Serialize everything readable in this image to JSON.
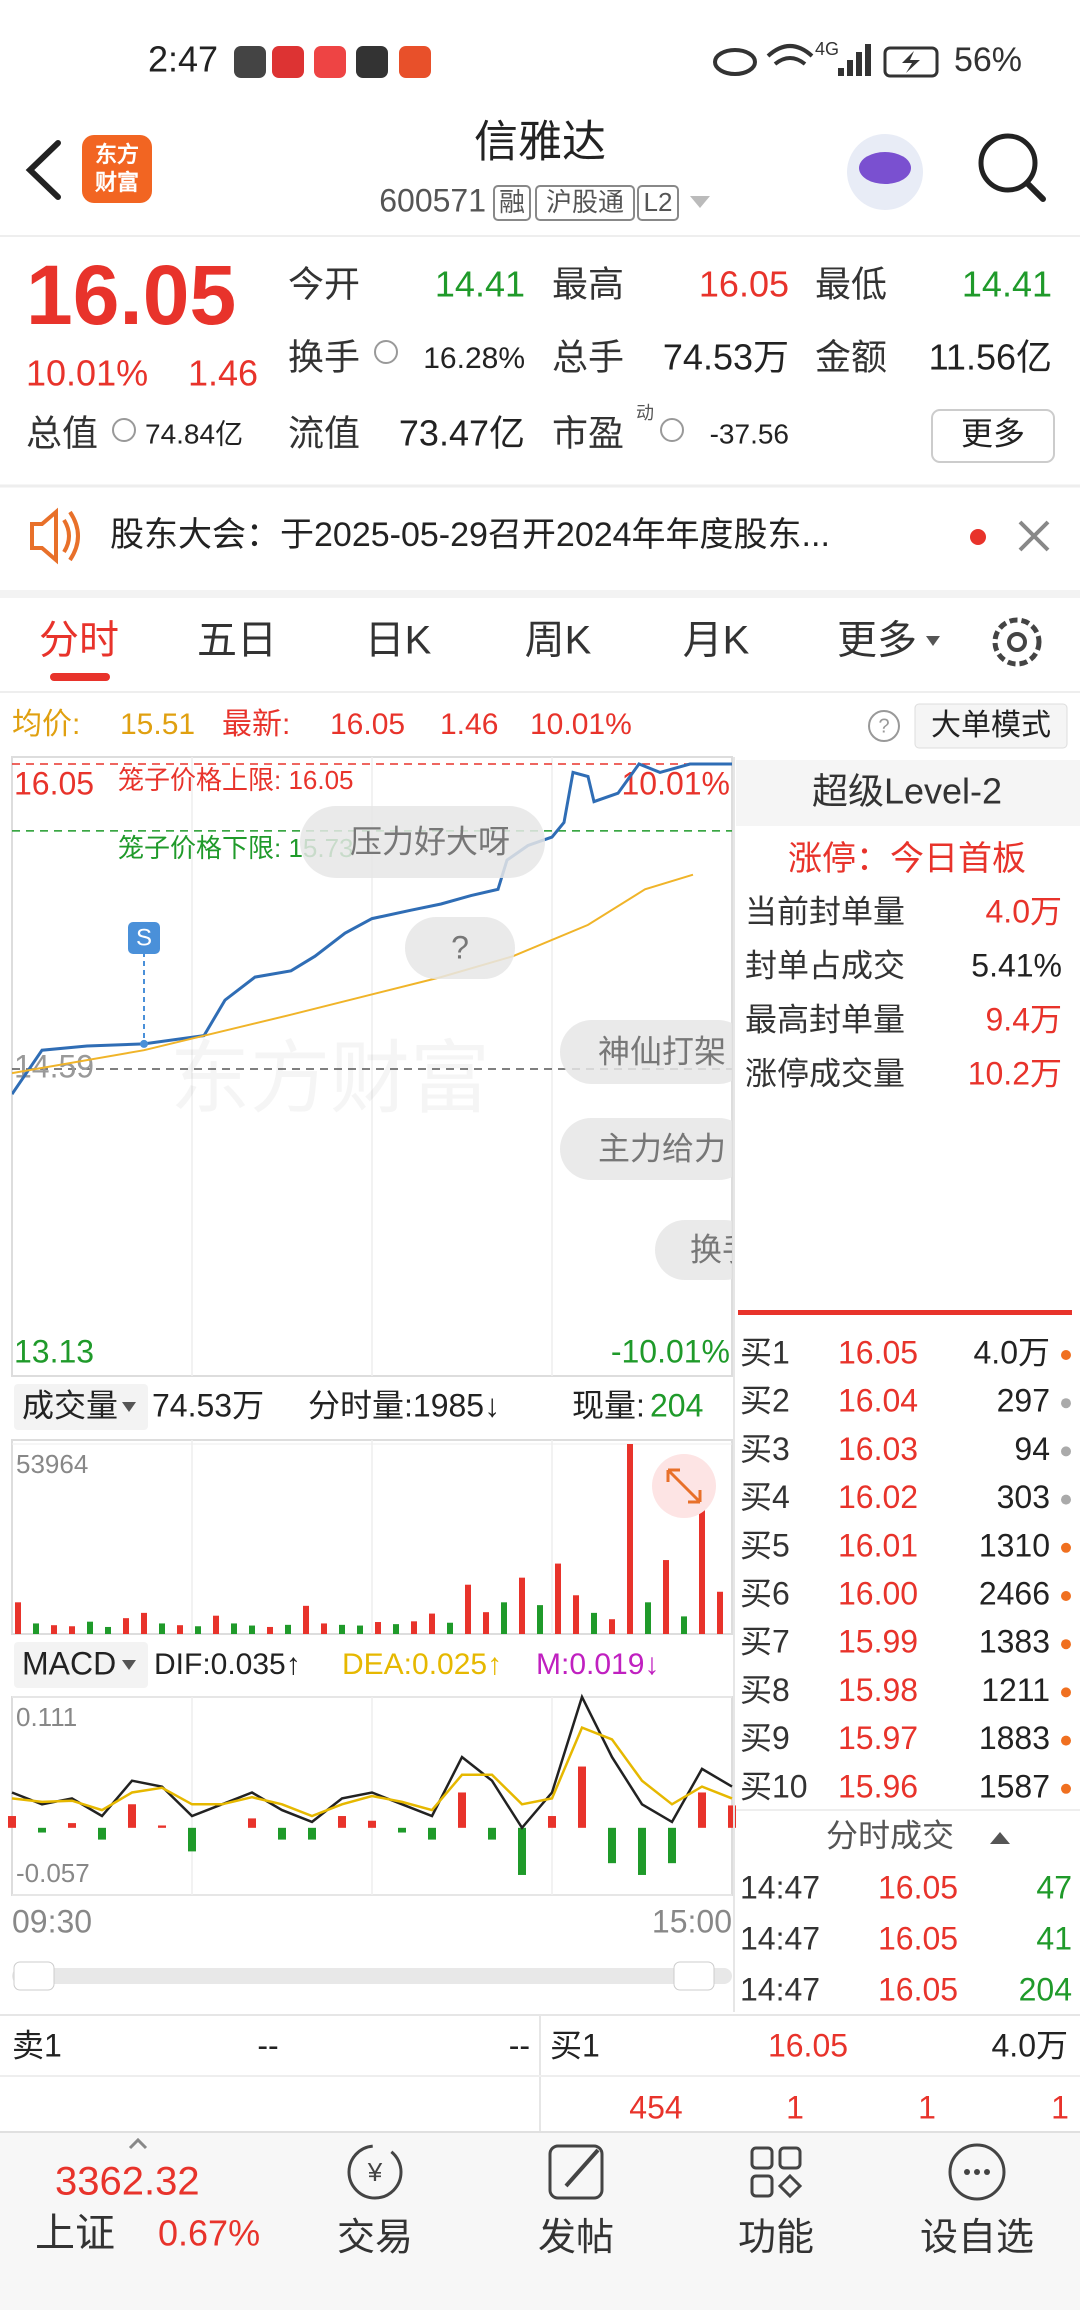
{
  "status": {
    "time": "2:47",
    "network": "4G",
    "battery": "56%"
  },
  "header": {
    "logo": [
      "东方",
      "财富"
    ],
    "title": "信雅达",
    "code": "600571",
    "tags": [
      "融",
      "沪股通",
      "L2"
    ]
  },
  "quote": {
    "price": "16.05",
    "percent": "10.01%",
    "change": "1.46",
    "fields": [
      {
        "label": "今开",
        "value": "14.41",
        "color": "#1f9a2a"
      },
      {
        "label": "最高",
        "value": "16.05",
        "color": "#e8332b"
      },
      {
        "label": "最低",
        "value": "14.41",
        "color": "#1f9a2a"
      },
      {
        "label": "换手",
        "value": "16.28%"
      },
      {
        "label": "总手",
        "value": "74.53万"
      },
      {
        "label": "金额",
        "value": "11.56亿"
      },
      {
        "label": "总值",
        "value": "74.84亿"
      },
      {
        "label": "流值",
        "value": "73.47亿"
      },
      {
        "label": "市盈",
        "value": "-37.56",
        "superscript": "动"
      }
    ],
    "more": "更多"
  },
  "notice": "股东大会：于2025-05-29召开2024年年度股东...",
  "tabs": [
    "分时",
    "五日",
    "日K",
    "周K",
    "月K",
    "更多"
  ],
  "info": {
    "avg_label": "均价:",
    "avg": "15.51",
    "latest_label": "最新:",
    "latest": "16.05",
    "change": "1.46",
    "percent": "10.01%",
    "mode": "大单模式"
  },
  "overlay": {
    "upper_limit": "笼子价格上限: 16.05",
    "lower_limit": "笼子价格下限: 15.73",
    "bubbles": [
      "压力好大呀",
      "?",
      "神仙打架",
      "主力给力",
      "换手"
    ],
    "badge": "S",
    "watermark": "东方财富"
  },
  "chart_data": [
    {
      "type": "line",
      "xlim": [
        0,
        240
      ],
      "xticks": [
        {
          "value": 0,
          "label": "09:30"
        },
        {
          "value": 240,
          "label": "15:00"
        }
      ],
      "ylim": [
        13.13,
        16.05
      ],
      "yticks": [
        13.13,
        14.59,
        16.05
      ],
      "y2lim": [
        -10.01,
        10.01
      ],
      "y2ticks": [
        {
          "value": 10.01,
          "label": "10.01%"
        },
        {
          "value": -10.01,
          "label": "-10.01%"
        }
      ],
      "limit_lines": [
        16.05,
        15.73
      ],
      "limit_colors": [
        "#e8332b",
        "#1f9a2a"
      ],
      "series": [
        {
          "color": "#2f6db5",
          "x": [
            0,
            10,
            25,
            44,
            64,
            71,
            81,
            93,
            101,
            111,
            120,
            133,
            143,
            153,
            162,
            165,
            172,
            180,
            184,
            187,
            192,
            194,
            202,
            209,
            216,
            226,
            231,
            240
          ],
          "values": [
            14.47,
            14.68,
            14.7,
            14.71,
            14.75,
            14.92,
            15.03,
            15.06,
            15.13,
            15.24,
            15.31,
            15.35,
            15.38,
            15.42,
            15.45,
            15.59,
            15.66,
            15.7,
            15.77,
            16.01,
            15.99,
            15.87,
            15.91,
            16.05,
            16.01,
            16.05,
            16.05,
            16.05
          ]
        },
        {
          "color": "#f0b429",
          "x": [
            0,
            44,
            93,
            143,
            167,
            192,
            211,
            227
          ],
          "values": [
            14.57,
            14.68,
            14.85,
            15.03,
            15.13,
            15.28,
            15.45,
            15.52
          ]
        }
      ]
    },
    {
      "type": "bar",
      "xlim": [
        0,
        240
      ],
      "ylim": [
        0,
        53964
      ],
      "yticks": [
        53964
      ],
      "x": [
        2,
        8,
        14,
        20,
        26,
        32,
        38,
        44,
        50,
        56,
        62,
        68,
        74,
        80,
        86,
        92,
        98,
        104,
        110,
        116,
        122,
        128,
        134,
        140,
        146,
        152,
        158,
        164,
        170,
        176,
        182,
        188,
        194,
        200,
        206,
        212,
        218,
        224,
        230,
        236
      ],
      "values": [
        9000,
        3000,
        2500,
        2200,
        3500,
        2000,
        4500,
        6000,
        3000,
        2500,
        2200,
        5200,
        3000,
        2400,
        2000,
        2600,
        8000,
        3000,
        2600,
        2400,
        3400,
        2800,
        3600,
        5800,
        3200,
        14000,
        6200,
        9000,
        16000,
        8200,
        20000,
        11000,
        6000,
        4200,
        53964,
        9000,
        21000,
        5000,
        40000,
        12000
      ],
      "colors": [
        "#e8332b",
        "#1f9a2a",
        "#e8332b",
        "#e8332b",
        "#1f9a2a",
        "#1f9a2a",
        "#e8332b",
        "#e8332b",
        "#1f9a2a",
        "#e8332b",
        "#1f9a2a",
        "#e8332b",
        "#1f9a2a",
        "#1f9a2a",
        "#e8332b",
        "#1f9a2a",
        "#e8332b",
        "#e8332b",
        "#1f9a2a",
        "#1f9a2a",
        "#e8332b",
        "#1f9a2a",
        "#e8332b",
        "#e8332b",
        "#1f9a2a",
        "#e8332b",
        "#e8332b",
        "#1f9a2a",
        "#e8332b",
        "#1f9a2a",
        "#e8332b",
        "#e8332b",
        "#1f9a2a",
        "#e8332b",
        "#e8332b",
        "#1f9a2a",
        "#e8332b",
        "#1f9a2a",
        "#e8332b",
        "#e8332b"
      ]
    },
    {
      "type": "macd",
      "xlim": [
        0,
        240
      ],
      "ylim": [
        -0.057,
        0.111
      ],
      "yticks": [
        0.111,
        -0.057
      ],
      "x": [
        0,
        10,
        20,
        30,
        40,
        50,
        60,
        70,
        80,
        90,
        100,
        110,
        120,
        130,
        140,
        150,
        160,
        170,
        180,
        190,
        200,
        210,
        220,
        230,
        240
      ],
      "dif": {
        "color": "#222222",
        "values": [
          0.03,
          0.02,
          0.025,
          0.01,
          0.04,
          0.035,
          0.01,
          0.02,
          0.03,
          0.015,
          0.005,
          0.025,
          0.03,
          0.02,
          0.01,
          0.06,
          0.04,
          0.0,
          0.03,
          0.111,
          0.06,
          0.02,
          0.005,
          0.05,
          0.035
        ]
      },
      "dea": {
        "color": "#e6b800",
        "values": [
          0.025,
          0.022,
          0.023,
          0.015,
          0.03,
          0.034,
          0.02,
          0.02,
          0.026,
          0.02,
          0.01,
          0.02,
          0.027,
          0.022,
          0.015,
          0.045,
          0.045,
          0.02,
          0.025,
          0.085,
          0.075,
          0.04,
          0.02,
          0.035,
          0.025
        ]
      },
      "hist": {
        "up_color": "#e8332b",
        "down_color": "#1f9a2a",
        "values": [
          0.01,
          -0.004,
          0.004,
          -0.01,
          0.02,
          0.002,
          -0.02,
          0,
          0.008,
          -0.01,
          -0.01,
          0.01,
          0.006,
          -0.004,
          -0.01,
          0.03,
          -0.01,
          -0.04,
          0.01,
          0.052,
          -0.03,
          -0.04,
          -0.03,
          0.03,
          0.019
        ]
      }
    }
  ],
  "volume_header": {
    "label": "成交量",
    "total": "74.53万",
    "minute": "分时量:1985↓",
    "current_label": "现量:",
    "current": "204"
  },
  "macd_header": {
    "label": "MACD",
    "dif": "DIF:0.035↑",
    "dea": "DEA:0.025↑",
    "m": "M:0.019↓"
  },
  "level2": {
    "title": "超级Level-2",
    "status_label": "涨停：",
    "status": "今日首板",
    "rows": [
      {
        "label": "当前封单量",
        "value": "4.0万"
      },
      {
        "label": "封单占成交",
        "value": "5.41%"
      },
      {
        "label": "最高封单量",
        "value": "9.4万"
      },
      {
        "label": "涨停成交量",
        "value": "10.2万"
      }
    ],
    "bids": [
      {
        "label": "买1",
        "price": "16.05",
        "volume": "4.0万",
        "dot": "#f07020"
      },
      {
        "label": "买2",
        "price": "16.04",
        "volume": "297",
        "dot": "#aaaaaa"
      },
      {
        "label": "买3",
        "price": "16.03",
        "volume": "94",
        "dot": "#aaaaaa"
      },
      {
        "label": "买4",
        "price": "16.02",
        "volume": "303",
        "dot": "#aaaaaa"
      },
      {
        "label": "买5",
        "price": "16.01",
        "volume": "1310",
        "dot": "#f07020"
      },
      {
        "label": "买6",
        "price": "16.00",
        "volume": "2466",
        "dot": "#f07020"
      },
      {
        "label": "买7",
        "price": "15.99",
        "volume": "1383",
        "dot": "#f07020"
      },
      {
        "label": "买8",
        "price": "15.98",
        "volume": "1211",
        "dot": "#f07020"
      },
      {
        "label": "买9",
        "price": "15.97",
        "volume": "1883",
        "dot": "#f07020"
      },
      {
        "label": "买10",
        "price": "15.96",
        "volume": "1587",
        "dot": "#f07020"
      }
    ],
    "trades_title": "分时成交",
    "trades": [
      {
        "time": "14:47",
        "price": "16.05",
        "volume": "47"
      },
      {
        "time": "14:47",
        "price": "16.05",
        "volume": "41"
      },
      {
        "time": "14:47",
        "price": "16.05",
        "volume": "204"
      }
    ]
  },
  "bottom": {
    "sell": {
      "label": "卖1",
      "price": "--",
      "volume": "--"
    },
    "buy": {
      "label": "买1",
      "price": "16.05",
      "volume": "4.0万"
    },
    "row2": [
      "454",
      "1",
      "1",
      "1"
    ]
  },
  "nav": {
    "index_value": "3362.32",
    "index_name": "上证",
    "index_change": "0.67%",
    "items": [
      "交易",
      "发帖",
      "功能",
      "设自选"
    ]
  }
}
